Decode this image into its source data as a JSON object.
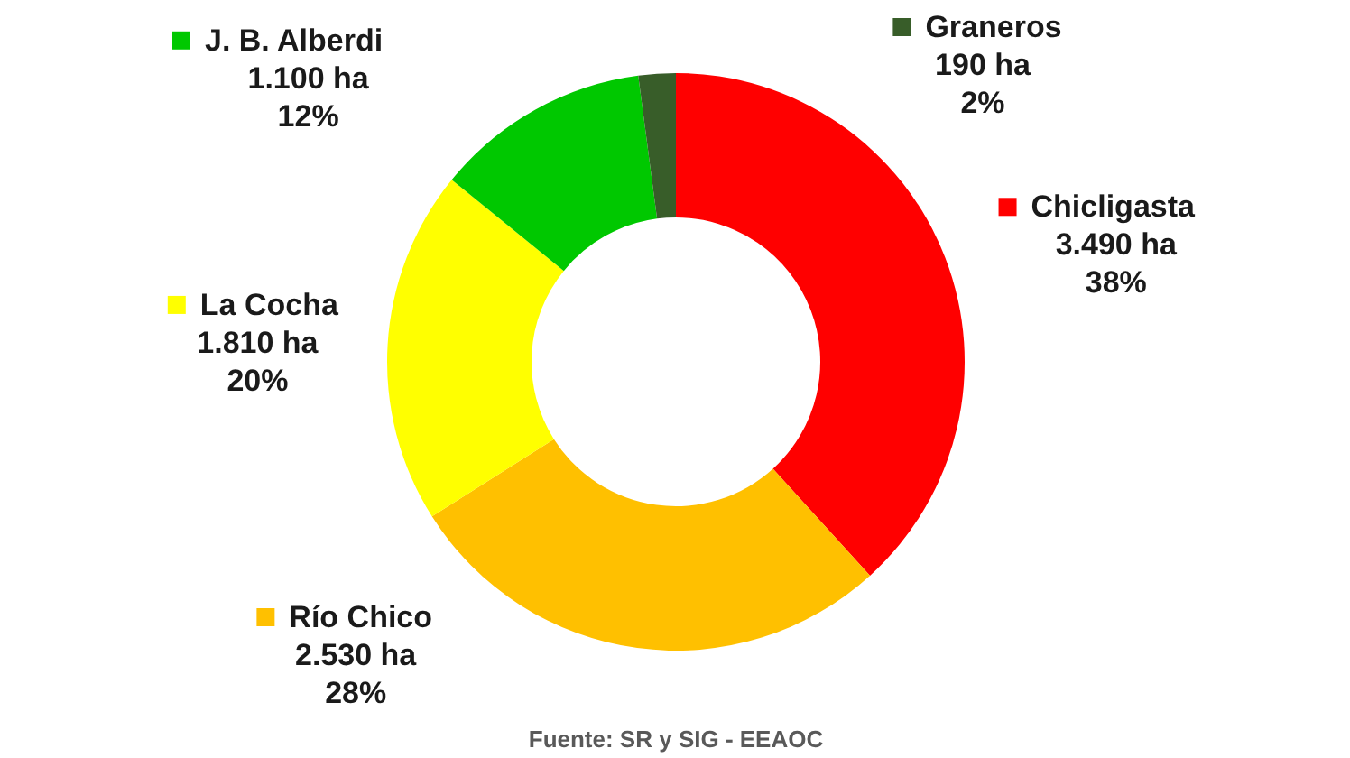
{
  "chart_data": {
    "type": "donut",
    "categories": [
      "Chicligasta",
      "Río Chico",
      "La Cocha",
      "J. B. Alberdi",
      "Graneros"
    ],
    "values": [
      3490,
      2530,
      1810,
      1100,
      190
    ],
    "colors": [
      "#ff0000",
      "#ffc000",
      "#ffff00",
      "#00c800",
      "#385d29"
    ],
    "value_labels": [
      "3.490 ha\n38%",
      "2.530 ha\n28%",
      "1.810 ha\n20%",
      "1.100 ha\n12%",
      "190 ha\n2%"
    ],
    "legend": "top right",
    "annotations": [
      "Fuente: SR y SIG - EEAOC"
    ]
  }
}
